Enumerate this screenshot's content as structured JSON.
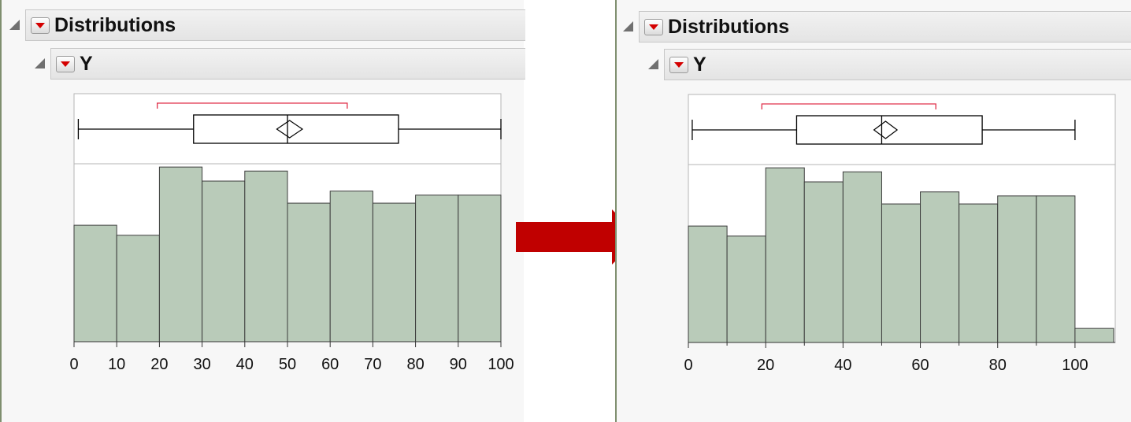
{
  "outline": {
    "title": "Distributions",
    "sub_title": "Y"
  },
  "arrow_icon": "right-arrow-icon",
  "colors": {
    "bar_fill": "#b9cbb9",
    "bar_stroke": "#3c3c3c",
    "bracket": "#e0304a",
    "arrow": "#c00000",
    "menu_triangle": "#d40000"
  },
  "chart_data": [
    {
      "type": "bar",
      "subtype": "histogram-with-box-plot",
      "title": "",
      "xlabel": "",
      "ylabel": "",
      "xlim": [
        0,
        100
      ],
      "x_ticks": [
        0,
        10,
        20,
        30,
        40,
        50,
        60,
        70,
        80,
        90,
        100
      ],
      "tick_labels": [
        "0",
        "10",
        "20",
        "30",
        "40",
        "50",
        "60",
        "70",
        "80",
        "90",
        "100"
      ],
      "bins": [
        [
          0,
          10
        ],
        [
          10,
          20
        ],
        [
          20,
          30
        ],
        [
          30,
          40
        ],
        [
          40,
          50
        ],
        [
          50,
          60
        ],
        [
          60,
          70
        ],
        [
          70,
          80
        ],
        [
          80,
          90
        ],
        [
          90,
          100
        ]
      ],
      "values": [
        58,
        53,
        87,
        80,
        85,
        69,
        75,
        69,
        73,
        73
      ],
      "ylim": [
        0,
        100
      ],
      "box_plot": {
        "min": 1,
        "q1": 28,
        "median": 50,
        "q3": 76,
        "max": 100,
        "mean": 50.5,
        "mean_ci": [
          47.5,
          53.5
        ],
        "shortest_half": [
          19.5,
          64
        ]
      }
    },
    {
      "type": "bar",
      "subtype": "histogram-with-box-plot",
      "title": "",
      "xlabel": "",
      "ylabel": "",
      "xlim": [
        0,
        110
      ],
      "x_ticks": [
        0,
        20,
        40,
        60,
        80,
        100
      ],
      "tick_labels": [
        "0",
        "20",
        "40",
        "60",
        "80",
        "100"
      ],
      "bins": [
        [
          0,
          10
        ],
        [
          10,
          20
        ],
        [
          20,
          30
        ],
        [
          30,
          40
        ],
        [
          40,
          50
        ],
        [
          50,
          60
        ],
        [
          60,
          70
        ],
        [
          70,
          80
        ],
        [
          80,
          90
        ],
        [
          90,
          100
        ],
        [
          100,
          110
        ]
      ],
      "values": [
        58,
        53,
        87,
        80,
        85,
        69,
        75,
        69,
        73,
        73,
        7
      ],
      "ylim": [
        0,
        100
      ],
      "box_plot": {
        "min": 1,
        "q1": 28,
        "median": 50,
        "q3": 76,
        "max": 100,
        "mean": 51,
        "mean_ci": [
          48,
          54
        ],
        "shortest_half": [
          19,
          64
        ]
      }
    }
  ]
}
